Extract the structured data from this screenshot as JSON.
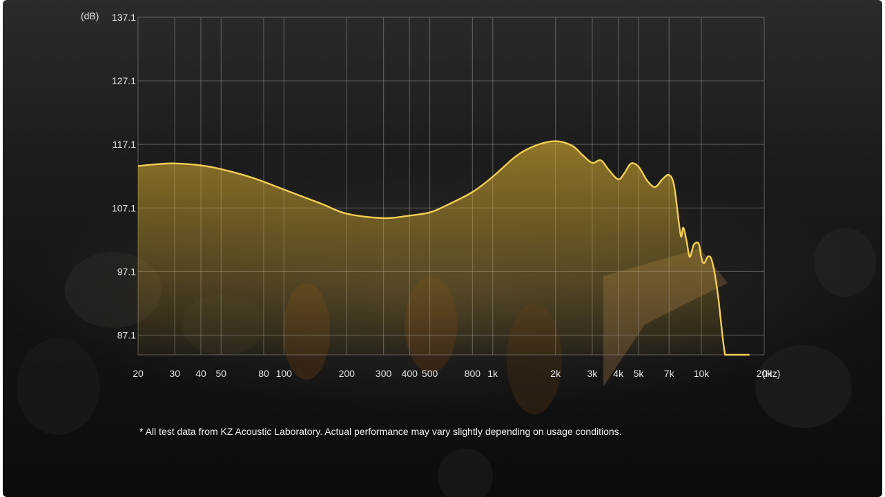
{
  "chart_data": {
    "type": "line",
    "x_scale": "log",
    "x_unit": "(Hz)",
    "y_unit": "(dB)",
    "grid": true,
    "line_color": "#f2cf55",
    "fill_color": "#d4a92c",
    "y_ticks": [
      "87.1",
      "97.1",
      "107.1",
      "117.1",
      "127.1",
      "137.1"
    ],
    "ylim": [
      84,
      137.1
    ],
    "xlim": [
      20,
      20000
    ],
    "x_ticks": [
      {
        "label": "20",
        "value": 20
      },
      {
        "label": "30",
        "value": 30
      },
      {
        "label": "40",
        "value": 40
      },
      {
        "label": "50",
        "value": 50
      },
      {
        "label": "80",
        "value": 80
      },
      {
        "label": "100",
        "value": 100
      },
      {
        "label": "200",
        "value": 200
      },
      {
        "label": "300",
        "value": 300
      },
      {
        "label": "400",
        "value": 400
      },
      {
        "label": "500",
        "value": 500
      },
      {
        "label": "800",
        "value": 800
      },
      {
        "label": "1k",
        "value": 1000
      },
      {
        "label": "2k",
        "value": 2000
      },
      {
        "label": "3k",
        "value": 3000
      },
      {
        "label": "4k",
        "value": 4000
      },
      {
        "label": "5k",
        "value": 5000
      },
      {
        "label": "7k",
        "value": 7000
      },
      {
        "label": "10k",
        "value": 10000
      },
      {
        "label": "20k",
        "value": 20000
      }
    ],
    "series": [
      {
        "x": [
          20,
          25,
          30,
          40,
          50,
          70,
          100,
          150,
          200,
          300,
          400,
          500,
          600,
          800,
          1000,
          1300,
          1600,
          2000,
          2400,
          2700,
          3000,
          3300,
          3600,
          4000,
          4300,
          4600,
          5000,
          5500,
          6000,
          6500,
          7000,
          7400,
          7800,
          8000,
          8200,
          8500,
          8800,
          9200,
          9700,
          10000,
          10300,
          10800,
          11300,
          12000,
          13000,
          14000,
          15000,
          16000,
          17000
        ],
        "y": [
          113.7,
          114.0,
          114.1,
          113.8,
          113.2,
          111.9,
          110.0,
          107.8,
          106.2,
          105.5,
          105.9,
          106.4,
          107.5,
          109.6,
          112.0,
          115.3,
          116.9,
          117.6,
          116.9,
          115.4,
          114.2,
          114.6,
          113.1,
          111.6,
          112.7,
          114.1,
          113.6,
          111.4,
          110.4,
          111.6,
          112.3,
          110.6,
          104.8,
          102.6,
          104.0,
          101.9,
          99.4,
          101.3,
          101.5,
          99.3,
          98.4,
          99.5,
          98.5,
          93.5,
          84.0,
          84.0,
          84.0,
          84.0,
          84.0
        ]
      }
    ]
  },
  "footnote": "* All test data from KZ Acoustic Laboratory. Actual performance may vary slightly depending on usage conditions."
}
